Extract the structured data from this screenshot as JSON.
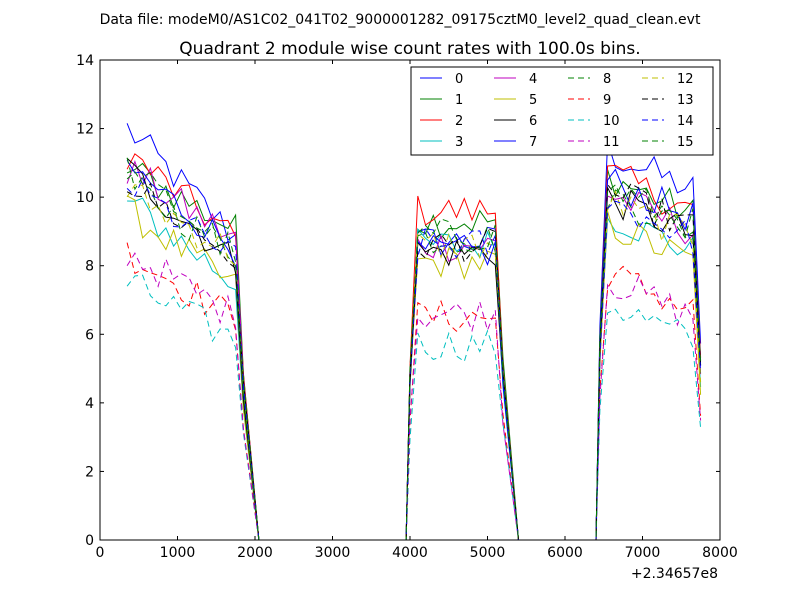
{
  "chart_data": {
    "type": "line",
    "suptitle": "Data file: modeM0/AS1C02_041T02_9000001282_09175cztM0_level2_quad_clean.evt",
    "title": "Quadrant 2 module wise count rates with 100.0s bins.",
    "xlabel": "",
    "ylabel": "",
    "xlim": [
      0,
      8000
    ],
    "ylim": [
      0,
      14
    ],
    "x_offset_label": "+2.34657e8",
    "xticks": [
      0,
      1000,
      2000,
      3000,
      4000,
      5000,
      6000,
      7000,
      8000
    ],
    "yticks": [
      0,
      2,
      4,
      6,
      8,
      10,
      12,
      14
    ],
    "xtick_labels": [
      "0",
      "1000",
      "2000",
      "3000",
      "4000",
      "5000",
      "6000",
      "7000",
      "8000"
    ],
    "ytick_labels": [
      "0",
      "2",
      "4",
      "6",
      "8",
      "10",
      "12",
      "14"
    ],
    "legend_position": "upper-right",
    "segments": [
      {
        "start": 350,
        "count": 16,
        "step": 100,
        "rise": false,
        "fall": true
      },
      {
        "start": 2050,
        "count": 20,
        "step": 100,
        "flat": true
      },
      {
        "start": 4000,
        "count": 13,
        "step": 100,
        "rise": true,
        "fall": true
      },
      {
        "start": 5400,
        "count": 11,
        "step": 100,
        "flat": true
      },
      {
        "start": 6450,
        "count": 14,
        "step": 100,
        "rise": true,
        "fall": true
      }
    ],
    "series": [
      {
        "name": "0",
        "color": "#0000ff",
        "dashed": false,
        "level": [
          12.0,
          8.6,
          8.7,
          11.4
        ]
      },
      {
        "name": "1",
        "color": "#008000",
        "dashed": false,
        "level": [
          10.9,
          8.9,
          9.3,
          10.7
        ]
      },
      {
        "name": "2",
        "color": "#ff0000",
        "dashed": false,
        "level": [
          11.3,
          8.6,
          9.6,
          10.8
        ]
      },
      {
        "name": "3",
        "color": "#00bfbf",
        "dashed": false,
        "level": [
          9.9,
          7.3,
          8.6,
          9.6
        ]
      },
      {
        "name": "4",
        "color": "#bf00bf",
        "dashed": false,
        "level": [
          10.8,
          8.6,
          8.6,
          10.2
        ]
      },
      {
        "name": "5",
        "color": "#bfbf00",
        "dashed": false,
        "level": [
          9.6,
          7.2,
          8.1,
          9.3
        ]
      },
      {
        "name": "6",
        "color": "#000000",
        "dashed": false,
        "level": [
          10.8,
          7.9,
          8.4,
          10.1
        ]
      },
      {
        "name": "7",
        "color": "#0000ff",
        "dashed": false,
        "level": [
          10.9,
          8.3,
          8.4,
          10.6
        ]
      },
      {
        "name": "8",
        "color": "#008000",
        "dashed": true,
        "level": [
          10.4,
          8.2,
          8.8,
          10.2
        ]
      },
      {
        "name": "9",
        "color": "#ff0000",
        "dashed": true,
        "level": [
          8.4,
          6.3,
          6.5,
          7.9
        ]
      },
      {
        "name": "10",
        "color": "#00bfbf",
        "dashed": true,
        "level": [
          7.5,
          5.7,
          5.7,
          7.0
        ]
      },
      {
        "name": "11",
        "color": "#bf00bf",
        "dashed": true,
        "level": [
          8.4,
          6.4,
          6.6,
          7.7
        ]
      },
      {
        "name": "12",
        "color": "#bfbf00",
        "dashed": true,
        "level": [
          10.2,
          8.2,
          8.6,
          10.0
        ]
      },
      {
        "name": "13",
        "color": "#000000",
        "dashed": true,
        "level": [
          10.5,
          8.0,
          8.6,
          10.3
        ]
      },
      {
        "name": "14",
        "color": "#0000ff",
        "dashed": true,
        "level": [
          10.4,
          8.0,
          8.6,
          10.0
        ]
      },
      {
        "name": "15",
        "color": "#008000",
        "dashed": true,
        "level": [
          10.8,
          8.2,
          8.9,
          10.4
        ]
      }
    ]
  }
}
